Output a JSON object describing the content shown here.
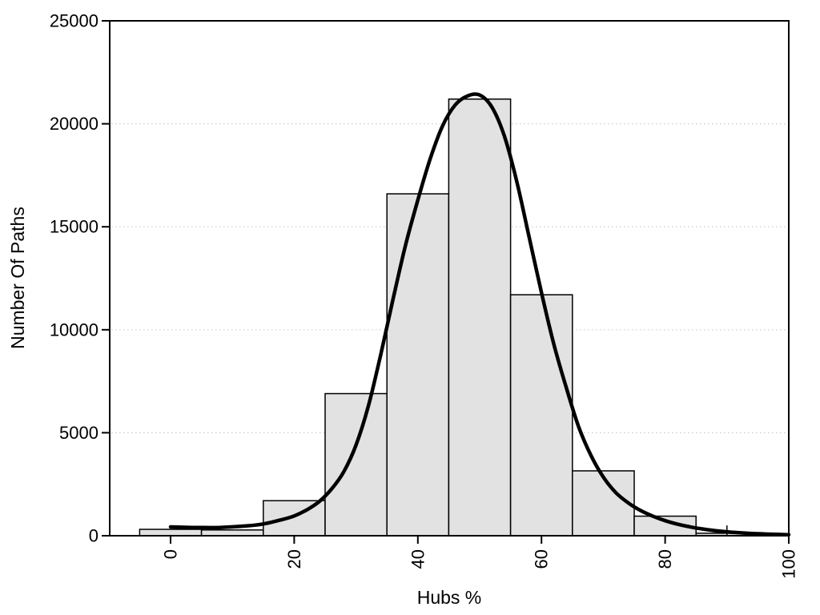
{
  "figure": {
    "background": "#ffffff",
    "foreground": "#000000"
  },
  "chart_data": {
    "type": "bar",
    "subtype": "histogram_with_density_curve",
    "title": "",
    "xlabel": "Hubs %",
    "ylabel": "Number Of Paths",
    "xlim": [
      -10,
      100
    ],
    "ylim": [
      0,
      25000
    ],
    "x_ticks": [
      0,
      20,
      40,
      60,
      80,
      100
    ],
    "y_ticks": [
      0,
      5000,
      10000,
      15000,
      20000,
      25000
    ],
    "x_tick_label_rotation_deg": -90,
    "grid": {
      "horizontal_at": [
        5000,
        10000,
        15000,
        20000
      ],
      "style": "dotted",
      "color": "#c9c9c9"
    },
    "histogram": {
      "bin_width": 10,
      "bin_edges": [
        -5,
        5,
        15,
        25,
        35,
        45,
        55,
        65,
        75,
        85,
        95
      ],
      "bin_centers": [
        0,
        10,
        20,
        30,
        40,
        50,
        60,
        70,
        80,
        90
      ],
      "values": [
        310,
        280,
        1700,
        6900,
        16600,
        21200,
        11700,
        3150,
        950,
        120
      ],
      "fill": "#e2e2e2",
      "stroke": "#000000"
    },
    "density_curve": {
      "color": "#000000",
      "stroke_width": 4.5,
      "points": [
        [
          0,
          430
        ],
        [
          4,
          400
        ],
        [
          8,
          400
        ],
        [
          12,
          470
        ],
        [
          15,
          570
        ],
        [
          18,
          780
        ],
        [
          20,
          960
        ],
        [
          22,
          1250
        ],
        [
          24,
          1650
        ],
        [
          26,
          2250
        ],
        [
          28,
          3100
        ],
        [
          30,
          4400
        ],
        [
          32,
          6300
        ],
        [
          34,
          8800
        ],
        [
          36,
          11500
        ],
        [
          38,
          14100
        ],
        [
          40,
          16300
        ],
        [
          42,
          18300
        ],
        [
          44,
          19900
        ],
        [
          46,
          20900
        ],
        [
          48,
          21350
        ],
        [
          50,
          21400
        ],
        [
          52,
          20800
        ],
        [
          54,
          19400
        ],
        [
          56,
          17200
        ],
        [
          58,
          14500
        ],
        [
          60,
          11800
        ],
        [
          62,
          9300
        ],
        [
          64,
          7200
        ],
        [
          66,
          5300
        ],
        [
          68,
          3900
        ],
        [
          70,
          2850
        ],
        [
          72,
          2100
        ],
        [
          74,
          1600
        ],
        [
          76,
          1230
        ],
        [
          78,
          950
        ],
        [
          80,
          730
        ],
        [
          82,
          560
        ],
        [
          84,
          430
        ],
        [
          86,
          330
        ],
        [
          88,
          250
        ],
        [
          90,
          190
        ],
        [
          92,
          145
        ],
        [
          94,
          110
        ],
        [
          96,
          85
        ],
        [
          98,
          65
        ],
        [
          100,
          50
        ]
      ]
    },
    "annotations": [
      {
        "type": "spike",
        "x": 90,
        "value": 500
      }
    ],
    "legend": null,
    "box": true
  }
}
